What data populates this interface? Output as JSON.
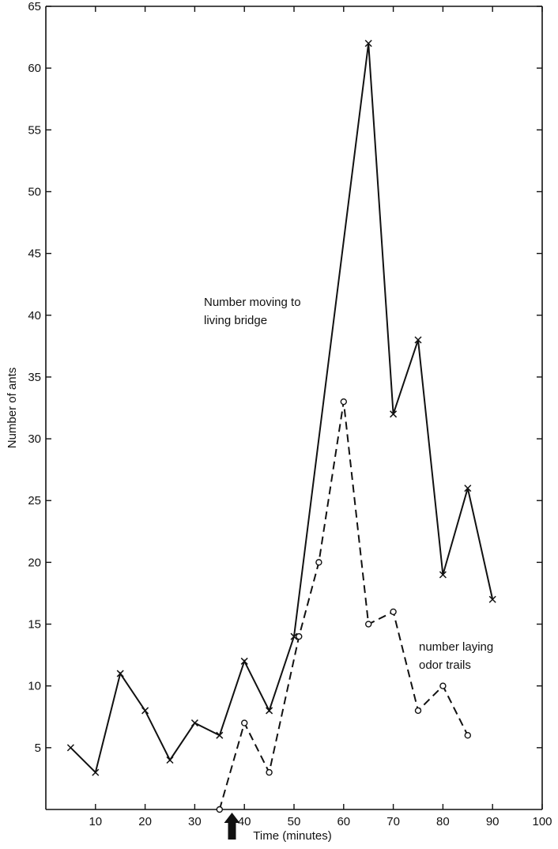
{
  "chart_data": {
    "type": "line",
    "title": "",
    "xlabel": "Time (minutes)",
    "ylabel": "Number of ants",
    "xlim": [
      0,
      100
    ],
    "ylim": [
      0,
      65
    ],
    "x_ticks": [
      10,
      20,
      30,
      40,
      50,
      60,
      70,
      80,
      90,
      100
    ],
    "y_ticks": [
      5,
      10,
      15,
      20,
      25,
      30,
      35,
      40,
      45,
      50,
      55,
      60,
      65
    ],
    "grid": false,
    "series": [
      {
        "name": "Number moving to living bridge",
        "marker": "x",
        "line_style": "solid",
        "x": [
          5,
          10,
          15,
          20,
          25,
          30,
          35,
          40,
          45,
          50,
          65,
          70,
          75,
          80,
          85,
          90
        ],
        "y": [
          5,
          3,
          11,
          8,
          4,
          7,
          6,
          12,
          8,
          14,
          62,
          32,
          38,
          19,
          26,
          17
        ]
      },
      {
        "name": "number laying odor trails",
        "marker": "o",
        "line_style": "dashed",
        "x": [
          35,
          40,
          45,
          51,
          55,
          60,
          65,
          70,
          75,
          80,
          85
        ],
        "y": [
          0,
          7,
          3,
          14,
          20,
          33,
          15,
          16,
          8,
          10,
          6
        ]
      }
    ],
    "annotations": [
      {
        "lines": [
          "Number moving to",
          "living bridge"
        ]
      },
      {
        "lines": [
          "number laying",
          "odor trails"
        ]
      }
    ],
    "event_marker": {
      "type": "arrow",
      "x": 37.5
    }
  }
}
